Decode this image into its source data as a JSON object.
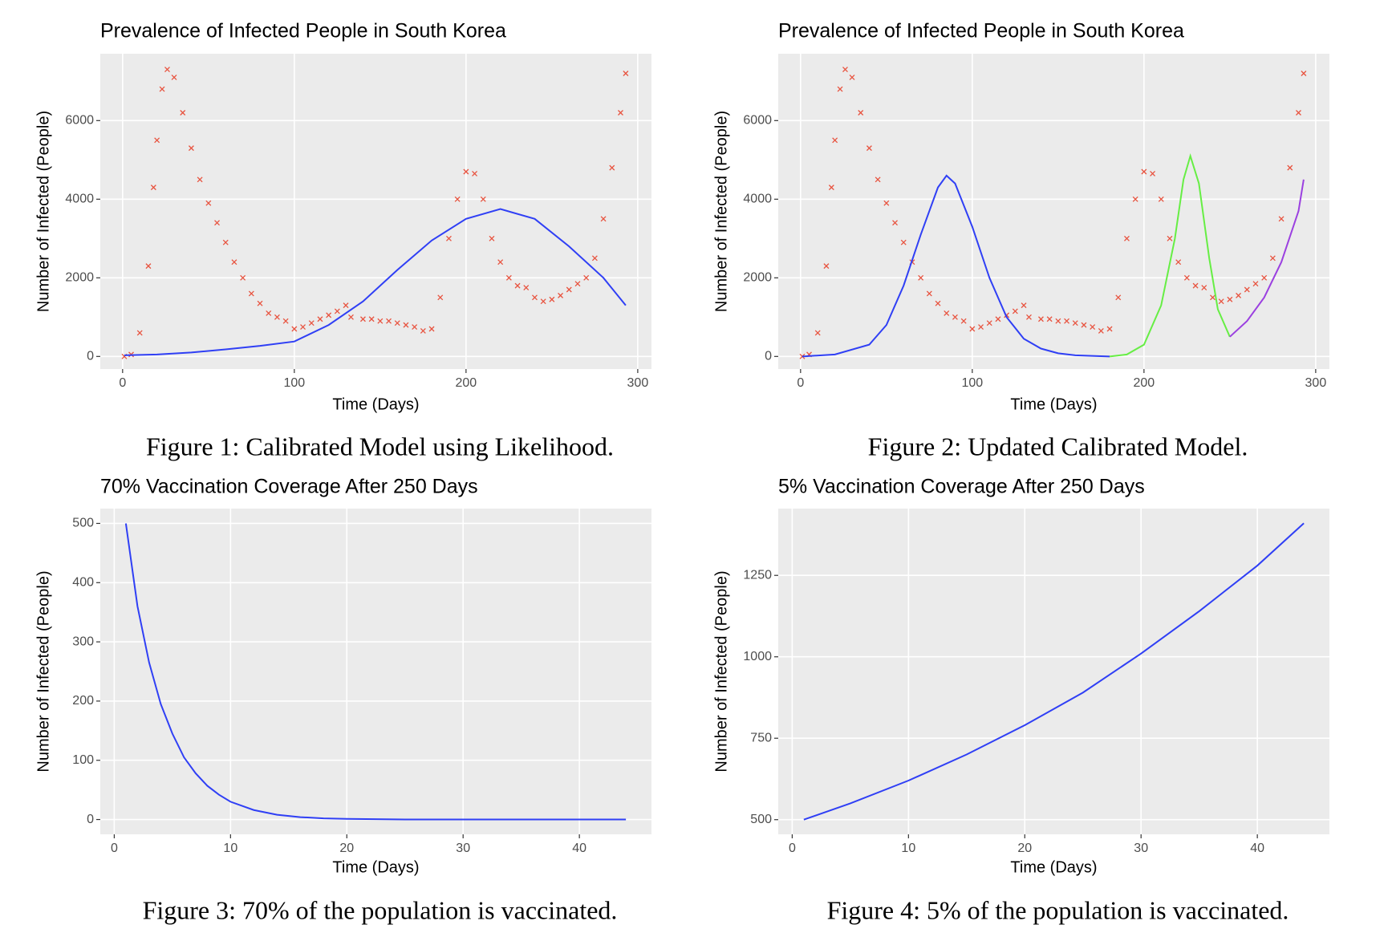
{
  "chart_data": [
    {
      "type": "line",
      "title": "Prevalence of Infected People in South Korea",
      "x_label": "Time (Days)",
      "y_label": "Number of Infected (People)",
      "caption": "Figure 1: Calibrated Model using Likelihood.",
      "xlim": [
        -13,
        308
      ],
      "ylim": [
        -320,
        7700
      ],
      "xticks": [
        0,
        100,
        200,
        300
      ],
      "yticks": [
        0,
        2000,
        4000,
        6000
      ],
      "grid": true,
      "series": [
        {
          "type": "scatter",
          "color": "#e8533f",
          "x": [
            1,
            5,
            10,
            15,
            18,
            20,
            23,
            26,
            30,
            35,
            40,
            45,
            50,
            55,
            60,
            65,
            70,
            75,
            80,
            85,
            90,
            95,
            100,
            105,
            110,
            115,
            120,
            125,
            130,
            133,
            140,
            145,
            150,
            155,
            160,
            165,
            170,
            175,
            180,
            185,
            190,
            195,
            200,
            205,
            210,
            215,
            220,
            225,
            230,
            235,
            240,
            245,
            250,
            255,
            260,
            265,
            270,
            275,
            280,
            285,
            290,
            293
          ],
          "values": [
            0,
            50,
            600,
            2300,
            4300,
            5500,
            6800,
            7300,
            7100,
            6200,
            5300,
            4500,
            3900,
            3400,
            2900,
            2400,
            2000,
            1600,
            1350,
            1100,
            1000,
            900,
            700,
            750,
            850,
            950,
            1050,
            1150,
            1300,
            1000,
            950,
            950,
            900,
            900,
            850,
            800,
            750,
            650,
            700,
            1500,
            3000,
            4000,
            4700,
            4650,
            4000,
            3000,
            2400,
            2000,
            1800,
            1750,
            1500,
            1400,
            1450,
            1550,
            1700,
            1850,
            2000,
            2500,
            3500,
            4800,
            6200,
            7200
          ]
        },
        {
          "type": "line",
          "color": "#2f3ff5",
          "x": [
            1,
            20,
            40,
            60,
            80,
            100,
            120,
            140,
            160,
            180,
            200,
            220,
            240,
            260,
            280,
            293
          ],
          "values": [
            30,
            50,
            100,
            180,
            270,
            380,
            800,
            1400,
            2200,
            2950,
            3500,
            3750,
            3500,
            2800,
            2000,
            1300
          ]
        }
      ]
    },
    {
      "type": "line",
      "title": "Prevalence of Infected People in South Korea",
      "x_label": "Time (Days)",
      "y_label": "Number of Infected (People)",
      "caption": "Figure 2: Updated Calibrated Model.",
      "xlim": [
        -13,
        308
      ],
      "ylim": [
        -320,
        7700
      ],
      "xticks": [
        0,
        100,
        200,
        300
      ],
      "yticks": [
        0,
        2000,
        4000,
        6000
      ],
      "grid": true,
      "series": [
        {
          "type": "scatter",
          "color": "#e8533f",
          "x": [
            1,
            5,
            10,
            15,
            18,
            20,
            23,
            26,
            30,
            35,
            40,
            45,
            50,
            55,
            60,
            65,
            70,
            75,
            80,
            85,
            90,
            95,
            100,
            105,
            110,
            115,
            120,
            125,
            130,
            133,
            140,
            145,
            150,
            155,
            160,
            165,
            170,
            175,
            180,
            185,
            190,
            195,
            200,
            205,
            210,
            215,
            220,
            225,
            230,
            235,
            240,
            245,
            250,
            255,
            260,
            265,
            270,
            275,
            280,
            285,
            290,
            293
          ],
          "values": [
            0,
            50,
            600,
            2300,
            4300,
            5500,
            6800,
            7300,
            7100,
            6200,
            5300,
            4500,
            3900,
            3400,
            2900,
            2400,
            2000,
            1600,
            1350,
            1100,
            1000,
            900,
            700,
            750,
            850,
            950,
            1050,
            1150,
            1300,
            1000,
            950,
            950,
            900,
            900,
            850,
            800,
            750,
            650,
            700,
            1500,
            3000,
            4000,
            4700,
            4650,
            4000,
            3000,
            2400,
            2000,
            1800,
            1750,
            1500,
            1400,
            1450,
            1550,
            1700,
            1850,
            2000,
            2500,
            3500,
            4800,
            6200,
            7200
          ]
        },
        {
          "type": "line",
          "color": "#2f3ff5",
          "x": [
            1,
            20,
            40,
            50,
            60,
            70,
            80,
            85,
            90,
            100,
            110,
            120,
            130,
            140,
            150,
            160,
            180
          ],
          "values": [
            0,
            50,
            300,
            800,
            1800,
            3100,
            4300,
            4600,
            4400,
            3300,
            2000,
            1000,
            450,
            200,
            80,
            30,
            0
          ]
        },
        {
          "type": "line",
          "color": "#66ee44",
          "x": [
            180,
            190,
            200,
            210,
            218,
            223,
            227,
            232,
            238,
            243,
            250
          ],
          "values": [
            0,
            50,
            300,
            1300,
            3000,
            4500,
            5100,
            4400,
            2500,
            1200,
            500
          ]
        },
        {
          "type": "line",
          "color": "#9b40e0",
          "x": [
            250,
            260,
            270,
            280,
            290,
            293
          ],
          "values": [
            500,
            900,
            1500,
            2400,
            3700,
            4500
          ]
        }
      ]
    },
    {
      "type": "line",
      "title": "70% Vaccination Coverage After 250 Days",
      "x_label": "Time (Days)",
      "y_label": "Number of Infected (People)",
      "caption": "Figure 3: 70% of the population is vaccinated.",
      "xlim": [
        -1.2,
        46.2
      ],
      "ylim": [
        -25,
        525
      ],
      "xticks": [
        0,
        10,
        20,
        30,
        40
      ],
      "yticks": [
        0,
        100,
        200,
        300,
        400,
        500
      ],
      "grid": true,
      "series": [
        {
          "type": "line",
          "color": "#2f3ff5",
          "x": [
            1,
            2,
            3,
            4,
            5,
            6,
            7,
            8,
            9,
            10,
            12,
            14,
            16,
            18,
            20,
            25,
            30,
            35,
            40,
            44
          ],
          "values": [
            500,
            360,
            265,
            195,
            145,
            105,
            78,
            57,
            42,
            30,
            16,
            8,
            4,
            2,
            1,
            0,
            0,
            0,
            0,
            0
          ]
        }
      ]
    },
    {
      "type": "line",
      "title": "5% Vaccination Coverage After 250 Days",
      "x_label": "Time (Days)",
      "y_label": "Number of Infected (People)",
      "caption": "Figure 4: 5% of the population is vaccinated.",
      "xlim": [
        -1.2,
        46.2
      ],
      "ylim": [
        455,
        1455
      ],
      "xticks": [
        0,
        10,
        20,
        30,
        40
      ],
      "yticks": [
        500,
        750,
        1000,
        1250
      ],
      "grid": true,
      "series": [
        {
          "type": "line",
          "color": "#2f3ff5",
          "x": [
            1,
            5,
            10,
            15,
            20,
            25,
            30,
            35,
            40,
            44
          ],
          "values": [
            500,
            550,
            620,
            700,
            790,
            890,
            1010,
            1140,
            1280,
            1410
          ]
        }
      ]
    }
  ]
}
